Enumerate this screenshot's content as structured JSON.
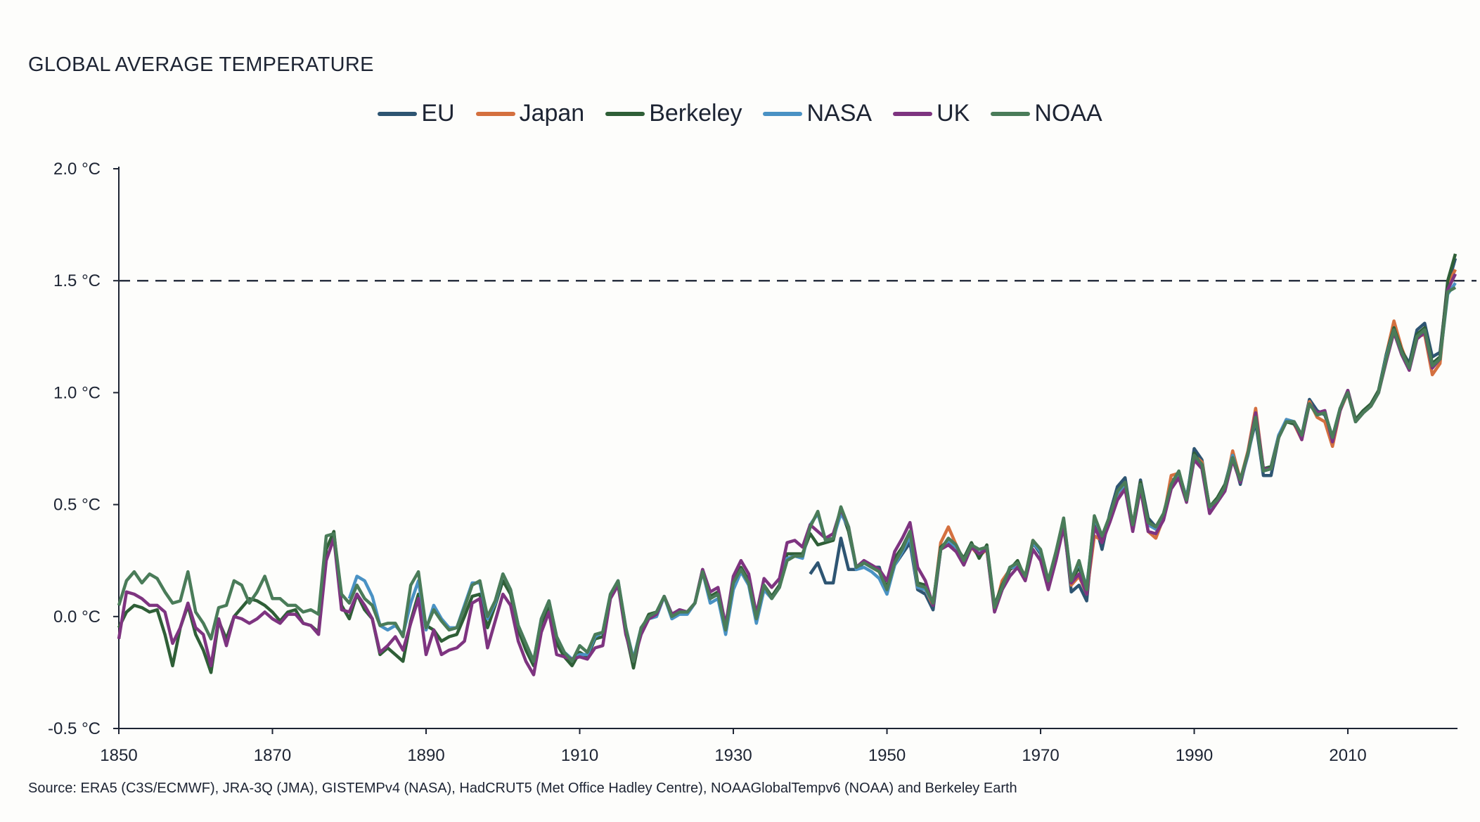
{
  "chart_data": {
    "type": "line",
    "title": "GLOBAL AVERAGE TEMPERATURE",
    "xlabel": "",
    "ylabel": "",
    "xlim": [
      1850,
      2024
    ],
    "ylim": [
      -0.5,
      2.0
    ],
    "x_ticks": [
      "1850",
      "1870",
      "1890",
      "1910",
      "1930",
      "1950",
      "1970",
      "1990",
      "2010"
    ],
    "y_ticks": [
      "2.0 °C",
      "1.5 °C",
      "1.0 °C",
      "0.5 °C",
      "0.0 °C",
      "-0.5 °C"
    ],
    "y_tick_values": [
      2.0,
      1.5,
      1.0,
      0.5,
      0.0,
      -0.5
    ],
    "reference_line": {
      "value": 1.5,
      "style": "dashed",
      "color": "#2a3140"
    },
    "grid": false,
    "legend_position": "top-center",
    "series": [
      {
        "name": "EU",
        "color": "#2e5572",
        "start": 1940,
        "values": [
          0.19,
          0.24,
          0.15,
          0.15,
          0.35,
          0.21,
          0.21,
          0.24,
          0.22,
          0.22,
          0.11,
          0.23,
          0.28,
          0.33,
          0.12,
          0.1,
          0.03,
          0.3,
          0.33,
          0.31,
          0.25,
          0.32,
          0.27,
          0.31,
          0.03,
          0.12,
          0.21,
          0.23,
          0.17,
          0.33,
          0.28,
          0.14,
          0.27,
          0.43,
          0.11,
          0.14,
          0.07,
          0.43,
          0.3,
          0.46,
          0.58,
          0.62,
          0.4,
          0.61,
          0.44,
          0.4,
          0.44,
          0.6,
          0.64,
          0.52,
          0.75,
          0.7,
          0.48,
          0.52,
          0.57,
          0.72,
          0.59,
          0.73,
          0.87,
          0.63,
          0.63,
          0.8,
          0.88,
          0.87,
          0.81,
          0.97,
          0.92,
          0.9,
          0.8,
          0.93,
          1.0,
          0.87,
          0.91,
          0.94,
          1.0,
          1.17,
          1.29,
          1.19,
          1.13,
          1.28,
          1.31,
          1.16,
          1.18,
          1.48,
          1.6
        ]
      },
      {
        "name": "Japan",
        "color": "#d4703f",
        "start": 1948,
        "values": [
          0.22,
          0.2,
          0.12,
          0.24,
          0.3,
          0.36,
          0.13,
          0.12,
          0.05,
          0.33,
          0.4,
          0.32,
          0.25,
          0.31,
          0.27,
          0.3,
          0.03,
          0.16,
          0.21,
          0.24,
          0.18,
          0.34,
          0.29,
          0.15,
          0.27,
          0.42,
          0.14,
          0.18,
          0.1,
          0.36,
          0.34,
          0.44,
          0.54,
          0.58,
          0.4,
          0.6,
          0.38,
          0.35,
          0.44,
          0.63,
          0.64,
          0.52,
          0.72,
          0.69,
          0.48,
          0.52,
          0.57,
          0.74,
          0.61,
          0.74,
          0.93,
          0.66,
          0.66,
          0.8,
          0.88,
          0.86,
          0.79,
          0.96,
          0.89,
          0.87,
          0.76,
          0.92,
          1.0,
          0.87,
          0.91,
          0.94,
          1.0,
          1.17,
          1.32,
          1.2,
          1.11,
          1.25,
          1.26,
          1.08,
          1.13,
          1.48,
          1.55
        ]
      },
      {
        "name": "Berkeley",
        "color": "#2f5f37",
        "start": 1850,
        "values": [
          -0.05,
          0.02,
          0.05,
          0.04,
          0.02,
          0.03,
          -0.08,
          -0.22,
          -0.05,
          0.05,
          -0.08,
          -0.15,
          -0.25,
          -0.02,
          -0.1,
          0.0,
          0.04,
          0.08,
          0.07,
          0.05,
          0.02,
          -0.02,
          0.02,
          0.03,
          -0.03,
          -0.04,
          -0.07,
          0.3,
          0.38,
          0.05,
          -0.01,
          0.1,
          0.03,
          -0.01,
          -0.17,
          -0.14,
          -0.17,
          -0.2,
          -0.02,
          0.1,
          -0.04,
          -0.06,
          -0.11,
          -0.09,
          -0.08,
          0.0,
          0.09,
          0.1,
          -0.05,
          0.05,
          0.16,
          0.1,
          -0.06,
          -0.15,
          -0.22,
          -0.03,
          0.05,
          -0.12,
          -0.18,
          -0.22,
          -0.16,
          -0.18,
          -0.1,
          -0.09,
          0.09,
          0.15,
          -0.07,
          -0.23,
          -0.06,
          0.01,
          0.02,
          0.09,
          0.01,
          0.03,
          0.02,
          0.06,
          0.21,
          0.09,
          0.11,
          -0.05,
          0.16,
          0.22,
          0.16,
          -0.02,
          0.14,
          0.09,
          0.14,
          0.28,
          0.28,
          0.28,
          0.37,
          0.32,
          0.33,
          0.34,
          0.48,
          0.38,
          0.22,
          0.24,
          0.23,
          0.2,
          0.13,
          0.26,
          0.31,
          0.38,
          0.15,
          0.14,
          0.06,
          0.31,
          0.34,
          0.31,
          0.26,
          0.33,
          0.26,
          0.32,
          0.05,
          0.14,
          0.21,
          0.25,
          0.17,
          0.33,
          0.29,
          0.15,
          0.28,
          0.43,
          0.16,
          0.22,
          0.12,
          0.44,
          0.35,
          0.44,
          0.55,
          0.59,
          0.4,
          0.6,
          0.43,
          0.39,
          0.45,
          0.59,
          0.64,
          0.53,
          0.73,
          0.67,
          0.49,
          0.53,
          0.59,
          0.72,
          0.61,
          0.73,
          0.9,
          0.66,
          0.67,
          0.81,
          0.87,
          0.86,
          0.81,
          0.95,
          0.91,
          0.91,
          0.8,
          0.93,
          1.01,
          0.88,
          0.92,
          0.95,
          1.01,
          1.17,
          1.29,
          1.19,
          1.12,
          1.26,
          1.29,
          1.13,
          1.16,
          1.5,
          1.62
        ]
      },
      {
        "name": "NASA",
        "color": "#4a92c4",
        "start": 1880,
        "values": [
          0.08,
          0.18,
          0.16,
          0.09,
          -0.04,
          -0.06,
          -0.04,
          -0.08,
          0.06,
          0.16,
          -0.06,
          0.05,
          -0.01,
          -0.05,
          -0.05,
          0.05,
          0.15,
          0.15,
          -0.01,
          0.06,
          0.19,
          0.12,
          -0.04,
          -0.12,
          -0.2,
          -0.01,
          0.07,
          -0.09,
          -0.16,
          -0.19,
          -0.17,
          -0.17,
          -0.09,
          -0.07,
          0.1,
          0.16,
          -0.05,
          -0.19,
          -0.05,
          -0.01,
          0.0,
          0.09,
          -0.01,
          0.01,
          0.01,
          0.06,
          0.2,
          0.06,
          0.08,
          -0.08,
          0.12,
          0.2,
          0.14,
          -0.03,
          0.12,
          0.08,
          0.13,
          0.26,
          0.27,
          0.26,
          0.41,
          0.46,
          0.34,
          0.35,
          0.46,
          0.4,
          0.21,
          0.22,
          0.2,
          0.17,
          0.1,
          0.23,
          0.29,
          0.36,
          0.13,
          0.12,
          0.06,
          0.3,
          0.34,
          0.31,
          0.25,
          0.32,
          0.28,
          0.31,
          0.04,
          0.13,
          0.22,
          0.22,
          0.17,
          0.33,
          0.29,
          0.16,
          0.28,
          0.43,
          0.17,
          0.24,
          0.13,
          0.44,
          0.36,
          0.44,
          0.55,
          0.59,
          0.4,
          0.58,
          0.41,
          0.39,
          0.45,
          0.58,
          0.64,
          0.53,
          0.72,
          0.67,
          0.48,
          0.51,
          0.58,
          0.72,
          0.6,
          0.72,
          0.89,
          0.65,
          0.66,
          0.81,
          0.88,
          0.87,
          0.81,
          0.95,
          0.91,
          0.91,
          0.8,
          0.93,
          1.0,
          0.87,
          0.91,
          0.94,
          1.0,
          1.16,
          1.28,
          1.18,
          1.11,
          1.25,
          1.28,
          1.12,
          1.15,
          1.44,
          1.49
        ]
      },
      {
        "name": "UK",
        "color": "#7e3480",
        "start": 1850,
        "values": [
          -0.1,
          0.11,
          0.1,
          0.08,
          0.05,
          0.05,
          0.02,
          -0.12,
          -0.05,
          0.06,
          -0.05,
          -0.08,
          -0.22,
          -0.01,
          -0.13,
          0.0,
          -0.01,
          -0.03,
          -0.01,
          0.02,
          -0.01,
          -0.03,
          0.01,
          0.01,
          -0.03,
          -0.04,
          -0.08,
          0.25,
          0.35,
          0.03,
          0.02,
          0.1,
          0.05,
          -0.01,
          -0.16,
          -0.13,
          -0.09,
          -0.15,
          -0.03,
          0.08,
          -0.17,
          -0.06,
          -0.17,
          -0.15,
          -0.14,
          -0.11,
          0.06,
          0.08,
          -0.14,
          -0.02,
          0.1,
          0.05,
          -0.11,
          -0.2,
          -0.26,
          -0.07,
          0.02,
          -0.17,
          -0.18,
          -0.19,
          -0.18,
          -0.19,
          -0.14,
          -0.13,
          0.08,
          0.14,
          -0.08,
          -0.2,
          -0.08,
          -0.01,
          0.01,
          0.09,
          0.01,
          0.03,
          0.02,
          0.06,
          0.21,
          0.11,
          0.13,
          -0.04,
          0.18,
          0.25,
          0.19,
          0.01,
          0.17,
          0.13,
          0.17,
          0.33,
          0.34,
          0.31,
          0.41,
          0.38,
          0.35,
          0.37,
          0.48,
          0.4,
          0.22,
          0.25,
          0.23,
          0.21,
          0.16,
          0.29,
          0.35,
          0.42,
          0.22,
          0.16,
          0.05,
          0.3,
          0.32,
          0.29,
          0.23,
          0.31,
          0.28,
          0.3,
          0.02,
          0.12,
          0.18,
          0.22,
          0.16,
          0.3,
          0.25,
          0.12,
          0.25,
          0.4,
          0.15,
          0.19,
          0.1,
          0.4,
          0.33,
          0.42,
          0.52,
          0.57,
          0.38,
          0.57,
          0.38,
          0.37,
          0.43,
          0.57,
          0.62,
          0.51,
          0.7,
          0.66,
          0.46,
          0.51,
          0.56,
          0.7,
          0.6,
          0.73,
          0.91,
          0.66,
          0.66,
          0.8,
          0.87,
          0.87,
          0.79,
          0.95,
          0.91,
          0.92,
          0.78,
          0.92,
          1.01,
          0.87,
          0.91,
          0.94,
          1.0,
          1.14,
          1.27,
          1.17,
          1.1,
          1.24,
          1.27,
          1.11,
          1.15,
          1.46,
          1.53
        ]
      },
      {
        "name": "NOAA",
        "color": "#4a7c59",
        "start": 1850,
        "values": [
          0.05,
          0.16,
          0.2,
          0.15,
          0.19,
          0.17,
          0.11,
          0.06,
          0.07,
          0.2,
          0.02,
          -0.03,
          -0.1,
          0.04,
          0.05,
          0.16,
          0.14,
          0.06,
          0.11,
          0.18,
          0.08,
          0.08,
          0.05,
          0.05,
          0.02,
          0.03,
          0.01,
          0.36,
          0.37,
          0.1,
          0.06,
          0.14,
          0.08,
          0.05,
          -0.04,
          -0.03,
          -0.03,
          -0.09,
          0.14,
          0.2,
          -0.05,
          0.03,
          -0.02,
          -0.06,
          -0.05,
          0.04,
          0.14,
          0.16,
          0.0,
          0.07,
          0.19,
          0.12,
          -0.04,
          -0.12,
          -0.2,
          -0.01,
          0.07,
          -0.09,
          -0.16,
          -0.2,
          -0.13,
          -0.16,
          -0.08,
          -0.07,
          0.1,
          0.16,
          -0.05,
          -0.2,
          -0.05,
          0.0,
          0.02,
          0.09,
          0.0,
          0.02,
          0.02,
          0.06,
          0.2,
          0.08,
          0.1,
          -0.06,
          0.15,
          0.21,
          0.15,
          -0.01,
          0.14,
          0.08,
          0.13,
          0.25,
          0.27,
          0.27,
          0.4,
          0.47,
          0.34,
          0.35,
          0.49,
          0.4,
          0.22,
          0.24,
          0.22,
          0.2,
          0.12,
          0.24,
          0.3,
          0.38,
          0.14,
          0.13,
          0.06,
          0.3,
          0.35,
          0.32,
          0.25,
          0.32,
          0.3,
          0.31,
          0.04,
          0.13,
          0.22,
          0.24,
          0.18,
          0.34,
          0.3,
          0.16,
          0.29,
          0.44,
          0.16,
          0.25,
          0.12,
          0.45,
          0.36,
          0.45,
          0.56,
          0.6,
          0.41,
          0.59,
          0.42,
          0.4,
          0.46,
          0.59,
          0.65,
          0.52,
          0.72,
          0.68,
          0.49,
          0.52,
          0.58,
          0.71,
          0.61,
          0.73,
          0.89,
          0.65,
          0.66,
          0.8,
          0.87,
          0.87,
          0.81,
          0.95,
          0.9,
          0.91,
          0.8,
          0.93,
          1.0,
          0.87,
          0.91,
          0.94,
          1.0,
          1.15,
          1.28,
          1.18,
          1.11,
          1.25,
          1.28,
          1.12,
          1.15,
          1.45,
          1.47
        ]
      }
    ],
    "source": "Source: ERA5 (C3S/ECMWF), JRA-3Q (JMA), GISTEMPv4 (NASA), HadCRUT5 (Met Office Hadley Centre), NOAAGlobalTempv6 (NOAA) and Berkeley Earth"
  }
}
